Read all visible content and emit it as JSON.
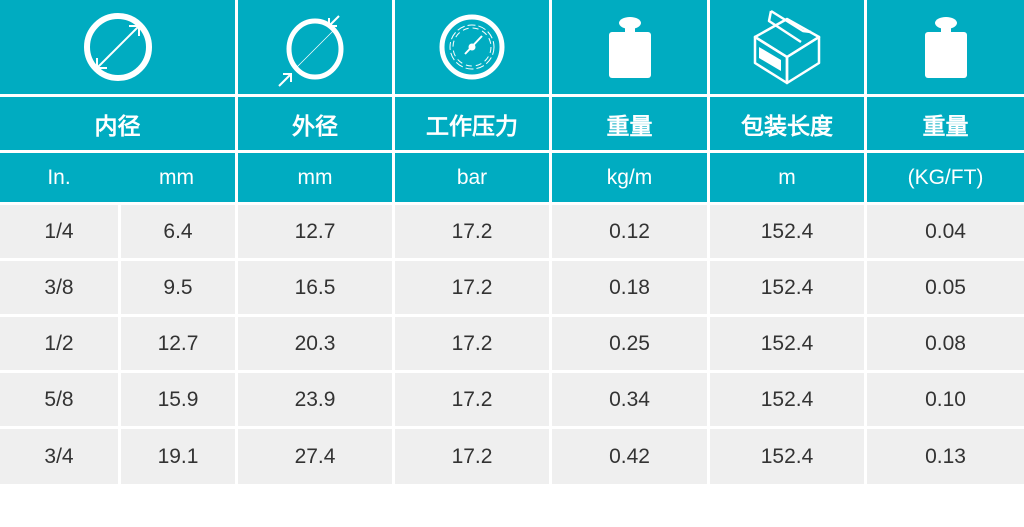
{
  "colors": {
    "header_bg": "#00acc1",
    "row_bg": "#efefef",
    "text": "#333333"
  },
  "icons": [
    "inner-diameter-icon",
    "outer-diameter-icon",
    "pressure-gauge-icon",
    "weight-icon",
    "box-icon",
    "weight-icon"
  ],
  "headers": {
    "labels": [
      "内径",
      "外径",
      "工作压力",
      "重量",
      "包装长度",
      "重量"
    ],
    "units": [
      "In.",
      "mm",
      "mm",
      "bar",
      "kg/m",
      "m",
      "(KG/FT)"
    ]
  },
  "rows": [
    [
      "1/4",
      "6.4",
      "12.7",
      "17.2",
      "0.12",
      "152.4",
      "0.04"
    ],
    [
      "3/8",
      "9.5",
      "16.5",
      "17.2",
      "0.18",
      "152.4",
      "0.05"
    ],
    [
      "1/2",
      "12.7",
      "20.3",
      "17.2",
      "0.25",
      "152.4",
      "0.08"
    ],
    [
      "5/8",
      "15.9",
      "23.9",
      "17.2",
      "0.34",
      "152.4",
      "0.10"
    ],
    [
      "3/4",
      "19.1",
      "27.4",
      "17.2",
      "0.42",
      "152.4",
      "0.13"
    ]
  ]
}
